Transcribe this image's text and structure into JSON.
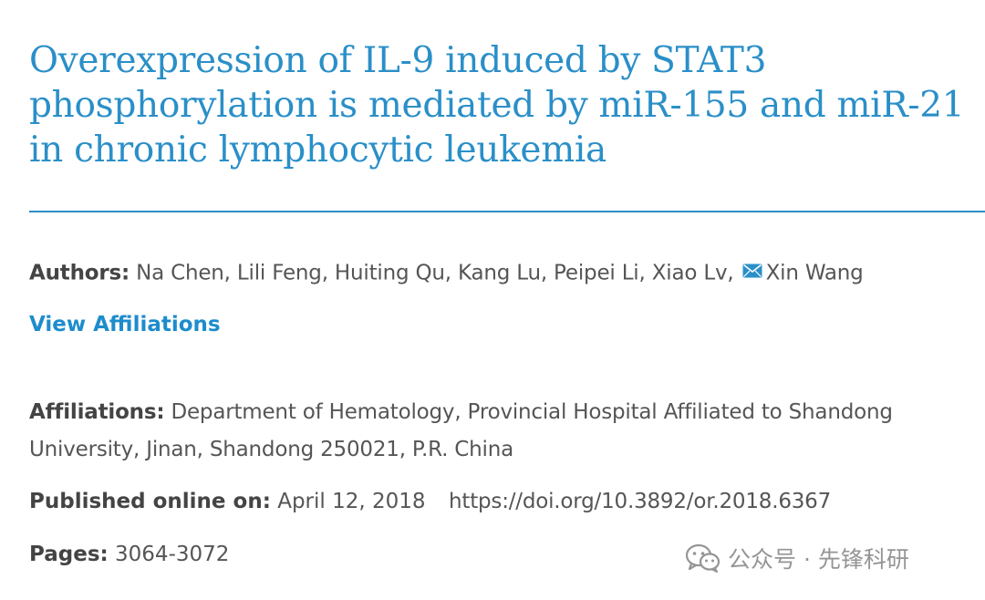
{
  "article": {
    "title": "Overexpression of IL-9 induced by STAT3 phosphorylation is mediated by miR-155 and miR-21 in chronic lymphocytic leukemia"
  },
  "authors": {
    "label": "Authors:",
    "names_before_icon": "Na Chen, Lili Feng, Huiting Qu, Kang Lu, Peipei Li, Xiao Lv,",
    "corresponding_author": "Xin Wang",
    "icon": "mail-icon"
  },
  "view_affiliations": {
    "label": "View Affiliations"
  },
  "affiliations": {
    "label": "Affiliations:",
    "text": "Department of Hematology, Provincial Hospital Affiliated to Shandong University, Jinan, Shandong 250021, P.R. China"
  },
  "publication": {
    "label": "Published online on:",
    "date": "April 12, 2018",
    "doi": "https://doi.org/10.3892/or.2018.6367"
  },
  "pages": {
    "label": "Pages:",
    "range": "3064-3072"
  },
  "watermark": {
    "icon": "wechat-icon",
    "text": "公众号 · 先锋科研"
  },
  "colors": {
    "accent": "#2a8fc8",
    "link": "#1d8ccc",
    "body_text": "#555555"
  }
}
